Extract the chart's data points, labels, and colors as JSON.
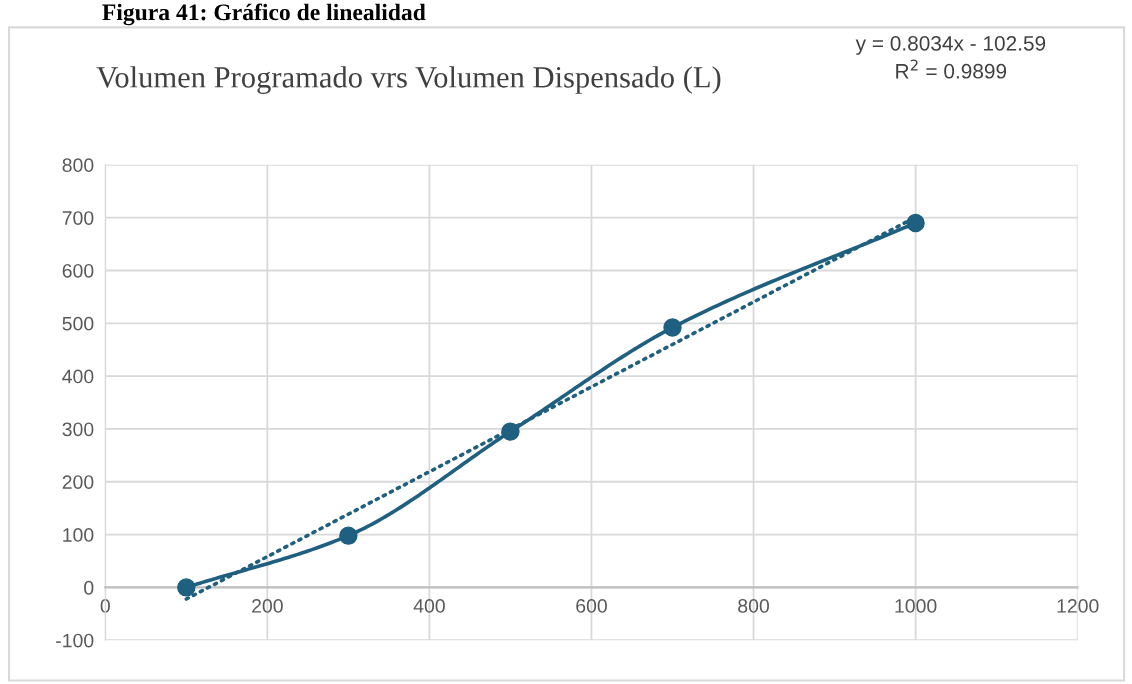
{
  "chart_data": {
    "type": "line",
    "title": "Volumen Programado vrs Volumen Dispensado (L)",
    "annotations": [
      "Figura 41: Gráfico de linealidad",
      "y = 0.8034x - 102.59",
      "R$^{2}$ = 0.9899"
    ],
    "series": [
      {
        "color": "#1f5f7f",
        "marker": "circle",
        "line_style": "solid",
        "x": [
          100,
          300,
          500,
          700,
          1000
        ],
        "values": [
          0,
          98,
          295,
          492,
          690
        ]
      },
      {
        "color": "#1f5f7f",
        "marker": "none",
        "line_style": "dotted",
        "x": [
          100,
          1000
        ],
        "values": [
          -22,
          701
        ]
      }
    ],
    "xlim": [
      0,
      1200
    ],
    "xticks": [
      0,
      200,
      400,
      600,
      800,
      1000,
      1200
    ],
    "ylim": [
      -100,
      800
    ],
    "yticks": [
      -100,
      0,
      100,
      200,
      300,
      400,
      500,
      600,
      700,
      800
    ],
    "grid": true
  }
}
